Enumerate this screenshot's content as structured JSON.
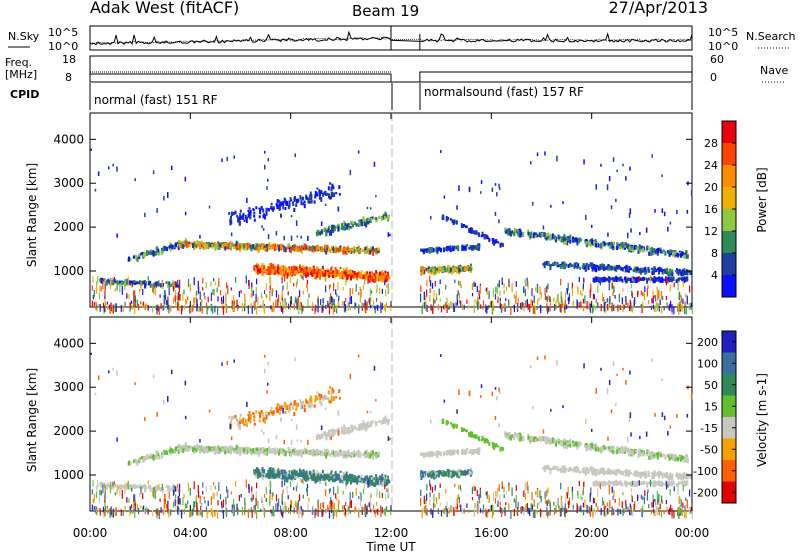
{
  "header": {
    "station": "Adak West (fitACF)",
    "beam": "Beam 19",
    "date": "27/Apr/2013"
  },
  "panels": {
    "nsky_label": "N.Sky",
    "nsky_ticks": [
      "10^5",
      "10^0"
    ],
    "nsearch_label": "N.Search",
    "nsearch_ticks": [
      "10^5",
      "10^0"
    ],
    "freq_label": "Freq.",
    "freq_unit": "[MHz]",
    "freq_ticks": [
      "18",
      "8"
    ],
    "nave_label": "Nave",
    "nave_ticks": [
      "60",
      "0"
    ],
    "cpid_label": "CPID",
    "cpid_segments": [
      {
        "label": "normal (fast) 151 RF",
        "start": "00:00",
        "end": "12:00"
      },
      {
        "label": "normalsound (fast) 157 RF",
        "start": "13:10",
        "end": "24:00"
      }
    ]
  },
  "chart_data": [
    {
      "type": "heatmap",
      "name": "power",
      "ylabel": "Slant Range [km]",
      "yticks": [
        "4000",
        "3000",
        "2000",
        "1000"
      ],
      "xticks": [
        "00:00",
        "04:00",
        "08:00",
        "12:00",
        "16:00",
        "20:00",
        "00:00"
      ],
      "xlabel": "",
      "ylim": [
        180,
        4600
      ],
      "xlim": [
        0,
        24
      ],
      "colorbar": {
        "label": "Power [dB]",
        "ticks": [
          "28",
          "24",
          "20",
          "16",
          "12",
          "8",
          "4"
        ],
        "colors": [
          "#e8000b",
          "#ff4400",
          "#ff8c00",
          "#f0b000",
          "#90c840",
          "#2e8b57",
          "#1f3f9f",
          "#0a10ff"
        ]
      }
    },
    {
      "type": "heatmap",
      "name": "velocity",
      "ylabel": "Slant Range [km]",
      "yticks": [
        "4000",
        "3000",
        "2000",
        "1000"
      ],
      "xticks": [
        "00:00",
        "04:00",
        "08:00",
        "12:00",
        "16:00",
        "20:00",
        "00:00"
      ],
      "xlabel": "Time UT",
      "ylim": [
        180,
        4600
      ],
      "xlim": [
        0,
        24
      ],
      "colorbar": {
        "label": "Velocity [m s-1]",
        "ticks": [
          "200",
          "100",
          "50",
          "15",
          "-15",
          "-50",
          "-100",
          "-200"
        ],
        "colors": [
          "#2020c0",
          "#3a6fa0",
          "#2e8b57",
          "#60c030",
          "#c8c8c0",
          "#f5a000",
          "#ff6000",
          "#e00000"
        ]
      }
    }
  ]
}
